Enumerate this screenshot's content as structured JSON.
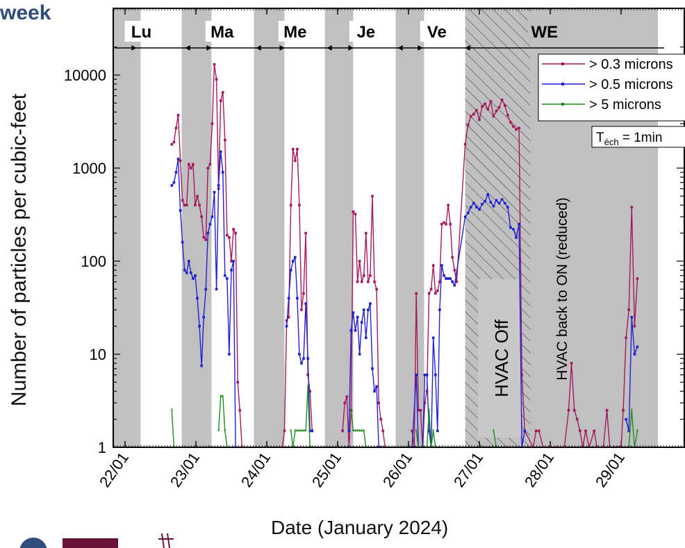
{
  "page": {
    "title_fragment": "week"
  },
  "chart_data": {
    "type": "line",
    "y_scale": "log",
    "ylim": [
      1,
      20000
    ],
    "y_ticks": [
      1,
      10,
      100,
      1000,
      10000
    ],
    "y_tick_labels": [
      "1",
      "10",
      "100",
      "1000",
      "10000"
    ],
    "x_start": "22/01",
    "x_ticks": [
      "22/01",
      "23/01",
      "24/01",
      "25/01",
      "26/01",
      "27/01",
      "28/01",
      "29/01"
    ],
    "xlabel": "Date (January 2024)",
    "ylabel": "Number of particles per cubic-feet",
    "day_labels": [
      "Lu",
      "Ma",
      "Me",
      "Je",
      "Ve",
      "WE"
    ],
    "shaded_periods": [
      [
        -0.2,
        0.22
      ],
      [
        0.8,
        1.22
      ],
      [
        1.82,
        2.25
      ],
      [
        2.82,
        3.22
      ],
      [
        3.82,
        4.22
      ],
      [
        4.8,
        7.52
      ]
    ],
    "hatched_period": [
      4.8,
      5.72
    ],
    "annotations": [
      "HVAC Off",
      "HVAC back to ON (reduced)"
    ],
    "sampling_label": {
      "base": "T",
      "subscript": "éch",
      "rest": " = 1min"
    },
    "legend": [
      {
        "label": "> 0.3 microns",
        "color": "#a3185e"
      },
      {
        "label": "> 0.5 microns",
        "color": "#1f1fd6"
      },
      {
        "label": "> 5 microns",
        "color": "#1f8a1f"
      }
    ],
    "series": [
      {
        "name": "> 0.3 microns",
        "color": "#a3185e",
        "points": [
          [
            0.66,
            1800
          ],
          [
            0.69,
            1900
          ],
          [
            0.72,
            2700
          ],
          [
            0.75,
            3700
          ],
          [
            0.78,
            1200
          ],
          [
            0.81,
            450
          ],
          [
            0.84,
            400
          ],
          [
            0.87,
            400
          ],
          [
            0.9,
            1100
          ],
          [
            0.93,
            1000
          ],
          [
            0.96,
            1100
          ],
          [
            0.99,
            400
          ],
          [
            1.02,
            500
          ],
          [
            1.05,
            400
          ],
          [
            1.08,
            300
          ],
          [
            1.11,
            180
          ],
          [
            1.14,
            170
          ],
          [
            1.17,
            1000
          ],
          [
            1.2,
            1100
          ],
          [
            1.23,
            3000
          ],
          [
            1.26,
            13000
          ],
          [
            1.29,
            9000
          ],
          [
            1.32,
            600
          ],
          [
            1.35,
            5300
          ],
          [
            1.38,
            6500
          ],
          [
            1.41,
            2000
          ],
          [
            1.44,
            190
          ],
          [
            1.47,
            180
          ],
          [
            1.5,
            100
          ],
          [
            1.53,
            220
          ],
          [
            1.56,
            200
          ],
          [
            1.59,
            5
          ],
          [
            1.62,
            2.5
          ],
          [
            1.65,
            1
          ],
          [
            2.22,
            1
          ],
          [
            2.25,
            1.5
          ],
          [
            2.28,
            23
          ],
          [
            2.31,
            25
          ],
          [
            2.34,
            400
          ],
          [
            2.37,
            1600
          ],
          [
            2.4,
            1200
          ],
          [
            2.43,
            1600
          ],
          [
            2.46,
            400
          ],
          [
            2.49,
            30
          ],
          [
            2.52,
            45
          ],
          [
            2.55,
            200
          ],
          [
            2.58,
            6
          ],
          [
            2.61,
            4
          ],
          [
            2.64,
            1.5
          ],
          [
            3.07,
            1.5
          ],
          [
            3.1,
            3
          ],
          [
            3.13,
            3.5
          ],
          [
            3.16,
            1
          ],
          [
            3.19,
            2.5
          ],
          [
            3.22,
            340
          ],
          [
            3.25,
            320
          ],
          [
            3.28,
            60
          ],
          [
            3.31,
            100
          ],
          [
            3.34,
            60
          ],
          [
            3.37,
            70
          ],
          [
            3.4,
            200
          ],
          [
            3.43,
            60
          ],
          [
            3.46,
            70
          ],
          [
            3.49,
            500
          ],
          [
            3.52,
            60
          ],
          [
            3.55,
            50
          ],
          [
            3.58,
            3
          ],
          [
            3.61,
            2
          ],
          [
            3.64,
            1.5
          ],
          [
            3.67,
            1
          ],
          [
            4.05,
            1.5
          ],
          [
            4.08,
            1
          ],
          [
            4.11,
            45
          ],
          [
            4.14,
            2.5
          ],
          [
            4.17,
            2.5
          ],
          [
            4.2,
            1
          ],
          [
            4.23,
            3
          ],
          [
            4.26,
            4
          ],
          [
            4.29,
            45
          ],
          [
            4.32,
            50
          ],
          [
            4.35,
            90
          ],
          [
            4.38,
            45
          ],
          [
            4.41,
            48
          ],
          [
            4.44,
            60
          ],
          [
            4.47,
            250
          ],
          [
            4.5,
            260
          ],
          [
            4.53,
            250
          ],
          [
            4.56,
            400
          ],
          [
            4.59,
            250
          ],
          [
            4.62,
            110
          ],
          [
            4.65,
            80
          ],
          [
            4.68,
            60
          ],
          [
            4.8,
            1800
          ],
          [
            4.84,
            2900
          ],
          [
            4.88,
            3600
          ],
          [
            4.92,
            3800
          ],
          [
            4.96,
            4200
          ],
          [
            5.0,
            3300
          ],
          [
            5.04,
            4600
          ],
          [
            5.08,
            4900
          ],
          [
            5.12,
            4300
          ],
          [
            5.16,
            5200
          ],
          [
            5.2,
            3600
          ],
          [
            5.24,
            4100
          ],
          [
            5.28,
            4500
          ],
          [
            5.32,
            5400
          ],
          [
            5.36,
            4700
          ],
          [
            5.4,
            3700
          ],
          [
            5.44,
            3100
          ],
          [
            5.48,
            2800
          ],
          [
            5.52,
            2600
          ],
          [
            5.56,
            2700
          ],
          [
            5.6,
            6
          ],
          [
            5.64,
            1.5
          ],
          [
            5.76,
            1
          ],
          [
            5.8,
            1.5
          ],
          [
            5.84,
            1.5
          ],
          [
            5.9,
            1
          ],
          [
            6.0,
            1
          ],
          [
            6.1,
            1
          ],
          [
            6.2,
            1
          ],
          [
            6.26,
            2.5
          ],
          [
            6.3,
            8
          ],
          [
            6.34,
            2.5
          ],
          [
            6.38,
            2
          ],
          [
            6.42,
            1.5
          ],
          [
            6.46,
            1
          ],
          [
            6.5,
            1.5
          ],
          [
            6.55,
            1
          ],
          [
            6.62,
            1.5
          ],
          [
            6.66,
            1
          ],
          [
            6.75,
            1
          ],
          [
            6.8,
            2.5
          ],
          [
            6.84,
            1
          ],
          [
            6.9,
            1
          ],
          [
            6.95,
            1
          ],
          [
            7.0,
            1
          ],
          [
            7.03,
            2.5
          ],
          [
            7.07,
            15
          ],
          [
            7.11,
            30
          ],
          [
            7.15,
            380
          ],
          [
            7.19,
            20
          ],
          [
            7.23,
            65
          ]
        ]
      },
      {
        "name": "> 0.5 microns",
        "color": "#1f1fd6",
        "points": [
          [
            0.66,
            650
          ],
          [
            0.69,
            700
          ],
          [
            0.72,
            900
          ],
          [
            0.75,
            1250
          ],
          [
            0.78,
            350
          ],
          [
            0.81,
            160
          ],
          [
            0.84,
            80
          ],
          [
            0.87,
            75
          ],
          [
            0.9,
            100
          ],
          [
            0.93,
            75
          ],
          [
            0.96,
            65
          ],
          [
            0.99,
            70
          ],
          [
            1.02,
            40
          ],
          [
            1.05,
            20
          ],
          [
            1.08,
            7.5
          ],
          [
            1.11,
            25
          ],
          [
            1.14,
            50
          ],
          [
            1.17,
            200
          ],
          [
            1.2,
            250
          ],
          [
            1.23,
            300
          ],
          [
            1.26,
            550
          ],
          [
            1.29,
            50
          ],
          [
            1.32,
            650
          ],
          [
            1.35,
            1500
          ],
          [
            1.38,
            900
          ],
          [
            1.41,
            70
          ],
          [
            1.44,
            65
          ],
          [
            1.47,
            10
          ],
          [
            1.5,
            80
          ],
          [
            1.53,
            100
          ],
          [
            1.56,
            1
          ],
          [
            2.28,
            20
          ],
          [
            2.31,
            40
          ],
          [
            2.34,
            80
          ],
          [
            2.37,
            100
          ],
          [
            2.4,
            110
          ],
          [
            2.43,
            40
          ],
          [
            2.46,
            10
          ],
          [
            2.49,
            8
          ],
          [
            2.52,
            9
          ],
          [
            2.55,
            35
          ],
          [
            2.58,
            9
          ],
          [
            2.61,
            1.5
          ],
          [
            2.64,
            1.5
          ],
          [
            3.16,
            1.5
          ],
          [
            3.19,
            18
          ],
          [
            3.22,
            28
          ],
          [
            3.25,
            18
          ],
          [
            3.28,
            25
          ],
          [
            3.31,
            10
          ],
          [
            3.34,
            22
          ],
          [
            3.37,
            30
          ],
          [
            3.4,
            15
          ],
          [
            3.43,
            30
          ],
          [
            3.46,
            35
          ],
          [
            3.49,
            7
          ],
          [
            3.52,
            4
          ],
          [
            3.55,
            4.5
          ],
          [
            3.58,
            1
          ],
          [
            3.61,
            1
          ],
          [
            4.05,
            1
          ],
          [
            4.11,
            6
          ],
          [
            4.14,
            1
          ],
          [
            4.2,
            1
          ],
          [
            4.23,
            6
          ],
          [
            4.26,
            6
          ],
          [
            4.29,
            1.5
          ],
          [
            4.32,
            1
          ],
          [
            4.35,
            15
          ],
          [
            4.38,
            6
          ],
          [
            4.41,
            1.5
          ],
          [
            4.44,
            30
          ],
          [
            4.47,
            90
          ],
          [
            4.5,
            70
          ],
          [
            4.53,
            65
          ],
          [
            4.56,
            65
          ],
          [
            4.59,
            65
          ],
          [
            4.62,
            60
          ],
          [
            4.65,
            55
          ],
          [
            4.8,
            300
          ],
          [
            4.84,
            330
          ],
          [
            4.88,
            380
          ],
          [
            4.92,
            420
          ],
          [
            4.96,
            380
          ],
          [
            5.0,
            360
          ],
          [
            5.04,
            410
          ],
          [
            5.08,
            440
          ],
          [
            5.12,
            520
          ],
          [
            5.16,
            430
          ],
          [
            5.2,
            390
          ],
          [
            5.24,
            450
          ],
          [
            5.28,
            420
          ],
          [
            5.32,
            460
          ],
          [
            5.36,
            420
          ],
          [
            5.4,
            380
          ],
          [
            5.44,
            230
          ],
          [
            5.48,
            220
          ],
          [
            5.52,
            180
          ],
          [
            5.56,
            250
          ],
          [
            5.6,
            1
          ],
          [
            5.64,
            1.5
          ],
          [
            7.07,
            2
          ],
          [
            7.11,
            1.5
          ],
          [
            7.15,
            25
          ],
          [
            7.19,
            10
          ],
          [
            7.23,
            12
          ]
        ]
      },
      {
        "name": "> 5 microns",
        "color": "#1f8a1f",
        "points": [
          [
            0.66,
            2.5
          ],
          [
            0.69,
            1
          ],
          [
            1.32,
            1.5
          ],
          [
            1.35,
            3.5
          ],
          [
            1.38,
            3.5
          ],
          [
            1.41,
            1.5
          ],
          [
            1.44,
            1
          ],
          [
            2.34,
            1.5
          ],
          [
            2.37,
            1
          ],
          [
            2.4,
            1.5
          ],
          [
            2.43,
            1.5
          ],
          [
            2.46,
            1.5
          ],
          [
            2.49,
            1.5
          ],
          [
            2.52,
            1.5
          ],
          [
            2.55,
            1.5
          ],
          [
            2.58,
            4.5
          ],
          [
            2.61,
            1
          ],
          [
            2.64,
            1
          ],
          [
            3.19,
            2.5
          ],
          [
            3.22,
            1.5
          ],
          [
            3.25,
            1.5
          ],
          [
            3.28,
            1.5
          ],
          [
            3.31,
            1.5
          ],
          [
            3.34,
            1.5
          ],
          [
            3.37,
            1.5
          ],
          [
            3.4,
            1
          ],
          [
            4.11,
            1.5
          ],
          [
            4.14,
            1
          ],
          [
            4.2,
            1
          ],
          [
            4.26,
            1
          ],
          [
            4.29,
            2.5
          ],
          [
            4.32,
            1
          ],
          [
            4.35,
            1.5
          ],
          [
            4.38,
            1
          ],
          [
            5.2,
            1.5
          ],
          [
            5.24,
            1
          ],
          [
            7.11,
            1
          ],
          [
            7.15,
            2.5
          ],
          [
            7.19,
            1
          ],
          [
            7.23,
            1.5
          ]
        ]
      }
    ]
  }
}
